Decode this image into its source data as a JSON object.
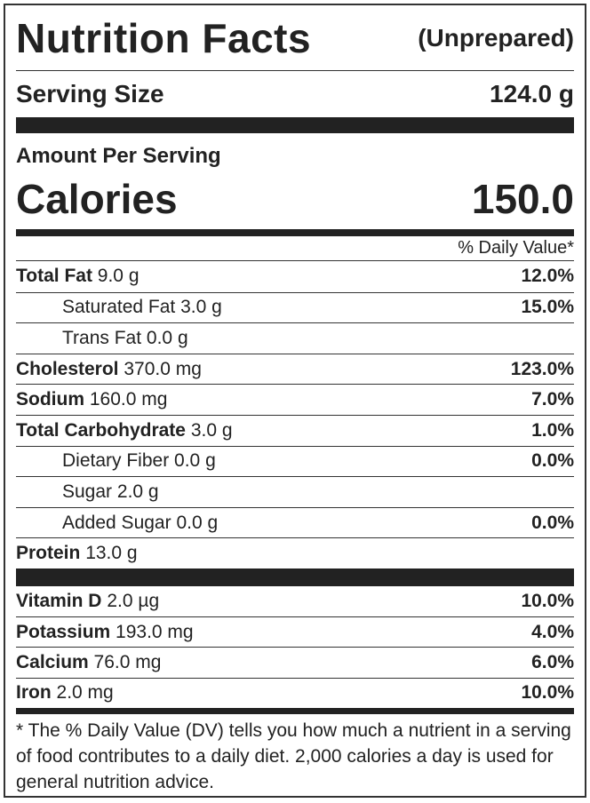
{
  "title": "Nutrition Facts",
  "title_note": "(Unprepared)",
  "serving_size": {
    "label": "Serving Size",
    "value": "124.0 g"
  },
  "amount_per_serving": "Amount Per Serving",
  "calories": {
    "label": "Calories",
    "value": "150.0"
  },
  "dv_header": "% Daily Value*",
  "nutrients": [
    {
      "name": "Total Fat",
      "amount": "9.0 g",
      "dv": "12.0%",
      "indent": false
    },
    {
      "name": "Saturated Fat",
      "amount": "3.0 g",
      "dv": "15.0%",
      "indent": true
    },
    {
      "name": "Trans Fat",
      "amount": "0.0 g",
      "indent": true
    },
    {
      "name": "Cholesterol",
      "amount": "370.0 mg",
      "dv": "123.0%",
      "indent": false
    },
    {
      "name": "Sodium",
      "amount": "160.0 mg",
      "dv": "7.0%",
      "indent": false
    },
    {
      "name": "Total Carbohydrate",
      "amount": "3.0 g",
      "dv": "1.0%",
      "indent": false
    },
    {
      "name": "Dietary Fiber",
      "amount": "0.0 g",
      "dv": "0.0%",
      "indent": true
    },
    {
      "name": "Sugar",
      "amount": "2.0 g",
      "indent": true
    },
    {
      "name": "Added Sugar",
      "amount": "0.0 g",
      "dv": "0.0%",
      "indent": true
    },
    {
      "name": "Protein",
      "amount": "13.0 g",
      "indent": false
    }
  ],
  "vitamins": [
    {
      "name": "Vitamin D",
      "amount": "2.0 µg",
      "dv": "10.0%"
    },
    {
      "name": "Potassium",
      "amount": "193.0 mg",
      "dv": "4.0%"
    },
    {
      "name": "Calcium",
      "amount": "76.0 mg",
      "dv": "6.0%"
    },
    {
      "name": "Iron",
      "amount": "2.0 mg",
      "dv": "10.0%"
    }
  ],
  "footnote": "* The % Daily Value (DV) tells you how much a nutrient in a serving of food contributes to a daily diet. 2,000 calories a day is used for general nutrition advice."
}
